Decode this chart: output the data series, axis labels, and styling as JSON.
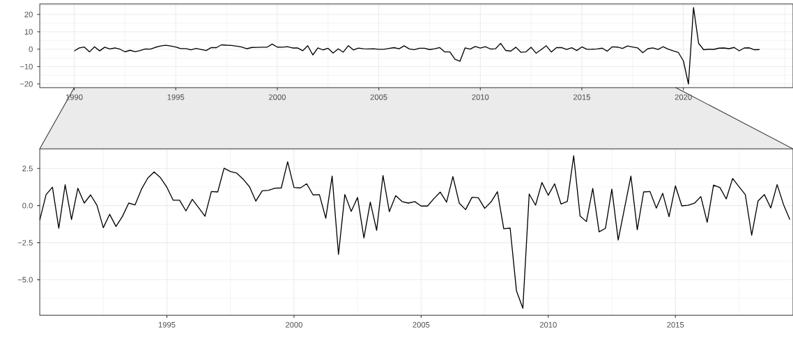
{
  "chart_data": [
    {
      "type": "line",
      "xlim": [
        1988.3,
        2025.4
      ],
      "ylim": [
        -22.1,
        26
      ],
      "grid": true,
      "xticks": [
        1990,
        1995,
        2000,
        2005,
        2010,
        2015,
        2020
      ],
      "yticks": [
        {
          "value": -20,
          "label": "−20"
        },
        {
          "value": -10,
          "label": "−10"
        },
        0,
        10,
        20
      ],
      "x": [
        1990,
        1990.25,
        1990.5,
        1990.75,
        1991,
        1991.25,
        1991.5,
        1991.75,
        1992,
        1992.25,
        1992.5,
        1992.75,
        1993,
        1993.25,
        1993.5,
        1993.75,
        1994,
        1994.25,
        1994.5,
        1994.75,
        1995,
        1995.25,
        1995.5,
        1995.75,
        1996,
        1996.25,
        1996.5,
        1996.75,
        1997,
        1997.25,
        1997.5,
        1997.75,
        1998,
        1998.25,
        1998.5,
        1998.75,
        1999,
        1999.25,
        1999.5,
        1999.75,
        2000,
        2000.25,
        2000.5,
        2000.75,
        2001,
        2001.25,
        2001.5,
        2001.75,
        2002,
        2002.25,
        2002.5,
        2002.75,
        2003,
        2003.25,
        2003.5,
        2003.75,
        2004,
        2004.25,
        2004.5,
        2004.75,
        2005,
        2005.25,
        2005.5,
        2005.75,
        2006,
        2006.25,
        2006.5,
        2006.75,
        2007,
        2007.25,
        2007.5,
        2007.75,
        2008,
        2008.25,
        2008.5,
        2008.75,
        2009,
        2009.25,
        2009.5,
        2009.75,
        2010,
        2010.25,
        2010.5,
        2010.75,
        2011,
        2011.25,
        2011.5,
        2011.75,
        2012,
        2012.25,
        2012.5,
        2012.75,
        2013,
        2013.25,
        2013.5,
        2013.75,
        2014,
        2014.25,
        2014.5,
        2014.75,
        2015,
        2015.25,
        2015.5,
        2015.75,
        2016,
        2016.25,
        2016.5,
        2016.75,
        2017,
        2017.25,
        2017.5,
        2017.75,
        2018,
        2018.25,
        2018.5,
        2018.75,
        2019,
        2019.25,
        2019.5,
        2019.75,
        2020,
        2020.25,
        2020.5,
        2020.75,
        2021,
        2021.25,
        2021.5,
        2021.75,
        2022,
        2022.25,
        2022.5,
        2022.75,
        2023,
        2023.25,
        2023.5,
        2023.75
      ],
      "series": [
        {
          "color": "#000000",
          "values": [
            -0.99,
            0.74,
            1.24,
            -1.53,
            1.41,
            -0.94,
            1.17,
            0.17,
            0.72,
            0.02,
            -1.49,
            -0.59,
            -1.41,
            -0.74,
            0.17,
            0.05,
            1.1,
            1.86,
            2.27,
            1.88,
            1.24,
            0.36,
            0.36,
            -0.36,
            0.42,
            -0.14,
            -0.72,
            0.95,
            0.92,
            2.52,
            2.3,
            2.19,
            1.78,
            1.27,
            0.3,
            1.0,
            1.03,
            1.17,
            1.19,
            2.96,
            1.22,
            1.19,
            1.47,
            0.72,
            0.74,
            -0.86,
            1.99,
            -3.29,
            0.75,
            -0.39,
            0.55,
            -2.18,
            0.23,
            -1.67,
            2.03,
            -0.41,
            0.67,
            0.27,
            0.17,
            0.27,
            -0.03,
            -0.03,
            0.47,
            0.91,
            0.23,
            1.96,
            0.16,
            -0.27,
            0.56,
            0.53,
            -0.19,
            0.25,
            0.94,
            -1.56,
            -1.52,
            -5.76,
            -6.93,
            0.78,
            0.03,
            1.56,
            0.7,
            1.47,
            0.11,
            0.28,
            3.36,
            -0.7,
            -1.08,
            1.16,
            -1.77,
            -1.53,
            1.11,
            -2.32,
            -0.16,
            1.99,
            -1.63,
            0.92,
            0.95,
            -0.17,
            0.83,
            -0.75,
            1.33,
            -0.02,
            0.02,
            0.16,
            0.61,
            -1.13,
            1.38,
            1.22,
            0.45,
            1.83,
            1.28,
            0.74,
            -2.0,
            0.31,
            0.74,
            -0.16,
            1.42,
            0.08,
            -0.94,
            -1.8,
            -6.7,
            -20,
            24,
            3.4,
            -0.3,
            0.0,
            -0.1,
            0.6,
            0.7,
            0.3,
            1.0,
            -0.9,
            0.7,
            0.8,
            -0.3,
            -0.2
          ]
        }
      ]
    },
    {
      "type": "line",
      "xlim": [
        1990,
        2019.625
      ],
      "ylim": [
        -7.4,
        3.83
      ],
      "grid": true,
      "xticks": [
        1995,
        2000,
        2005,
        2010,
        2015
      ],
      "yticks": [
        {
          "value": -5,
          "label": "−5.0"
        },
        {
          "value": -2.5,
          "label": "−2.5"
        },
        {
          "value": 0,
          "label": "0.0"
        },
        {
          "value": 2.5,
          "label": "2.5"
        }
      ],
      "x": [
        1990,
        1990.25,
        1990.5,
        1990.75,
        1991,
        1991.25,
        1991.5,
        1991.75,
        1992,
        1992.25,
        1992.5,
        1992.75,
        1993,
        1993.25,
        1993.5,
        1993.75,
        1994,
        1994.25,
        1994.5,
        1994.75,
        1995,
        1995.25,
        1995.5,
        1995.75,
        1996,
        1996.25,
        1996.5,
        1996.75,
        1997,
        1997.25,
        1997.5,
        1997.75,
        1998,
        1998.25,
        1998.5,
        1998.75,
        1999,
        1999.25,
        1999.5,
        1999.75,
        2000,
        2000.25,
        2000.5,
        2000.75,
        2001,
        2001.25,
        2001.5,
        2001.75,
        2002,
        2002.25,
        2002.5,
        2002.75,
        2003,
        2003.25,
        2003.5,
        2003.75,
        2004,
        2004.25,
        2004.5,
        2004.75,
        2005,
        2005.25,
        2005.5,
        2005.75,
        2006,
        2006.25,
        2006.5,
        2006.75,
        2007,
        2007.25,
        2007.5,
        2007.75,
        2008,
        2008.25,
        2008.5,
        2008.75,
        2009,
        2009.25,
        2009.5,
        2009.75,
        2010,
        2010.25,
        2010.5,
        2010.75,
        2011,
        2011.25,
        2011.5,
        2011.75,
        2012,
        2012.25,
        2012.5,
        2012.75,
        2013,
        2013.25,
        2013.5,
        2013.75,
        2014,
        2014.25,
        2014.5,
        2014.75,
        2015,
        2015.25,
        2015.5,
        2015.75,
        2016,
        2016.25,
        2016.5,
        2016.75,
        2017,
        2017.25,
        2017.5,
        2017.75,
        2018,
        2018.25,
        2018.5,
        2018.75,
        2019,
        2019.25,
        2019.5
      ],
      "series": [
        {
          "color": "#000000",
          "values": [
            -0.99,
            0.74,
            1.24,
            -1.53,
            1.41,
            -0.94,
            1.17,
            0.17,
            0.72,
            0.02,
            -1.49,
            -0.59,
            -1.41,
            -0.74,
            0.17,
            0.05,
            1.1,
            1.86,
            2.27,
            1.88,
            1.24,
            0.36,
            0.36,
            -0.36,
            0.42,
            -0.14,
            -0.72,
            0.95,
            0.92,
            2.52,
            2.3,
            2.19,
            1.78,
            1.27,
            0.3,
            1.0,
            1.03,
            1.17,
            1.19,
            2.96,
            1.22,
            1.19,
            1.47,
            0.72,
            0.74,
            -0.86,
            1.99,
            -3.29,
            0.75,
            -0.39,
            0.55,
            -2.18,
            0.23,
            -1.67,
            2.03,
            -0.41,
            0.67,
            0.27,
            0.17,
            0.27,
            -0.03,
            -0.03,
            0.47,
            0.91,
            0.23,
            1.96,
            0.16,
            -0.27,
            0.56,
            0.53,
            -0.19,
            0.25,
            0.94,
            -1.56,
            -1.52,
            -5.76,
            -6.93,
            0.78,
            0.03,
            1.56,
            0.7,
            1.47,
            0.11,
            0.28,
            3.36,
            -0.7,
            -1.08,
            1.16,
            -1.77,
            -1.53,
            1.11,
            -2.32,
            -0.16,
            1.99,
            -1.63,
            0.92,
            0.95,
            -0.17,
            0.83,
            -0.75,
            1.33,
            -0.02,
            0.02,
            0.16,
            0.61,
            -1.13,
            1.38,
            1.22,
            0.45,
            1.83,
            1.28,
            0.74,
            -2.0,
            0.31,
            0.74,
            -0.16,
            1.42,
            0.08,
            -0.94
          ]
        }
      ]
    }
  ]
}
